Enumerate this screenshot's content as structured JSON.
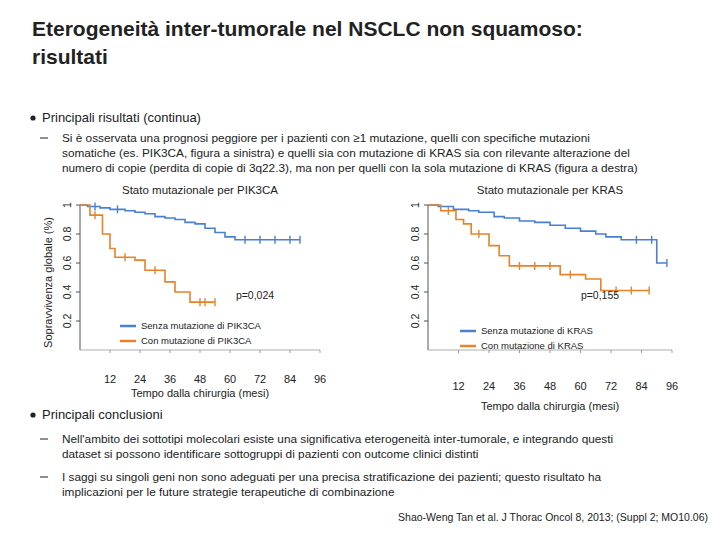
{
  "slide": {
    "title": [
      "Eterogeneità inter-tumorale nel NSCLC non squamoso:",
      "risultati"
    ],
    "results": {
      "heading": "Principali risultati (continua)",
      "items": [
        [
          "Si è osservata una prognosi peggiore per i pazienti con ≥1 mutazione, quelli con specifiche mutazioni",
          "somatiche (es. PIK3CA, figura a sinistra) e quelli sia con mutazione di KRAS sia con rilevante alterazione del",
          "numero di copie (perdita di copie di 3q22.3), ma non per quelli con la sola mutazione di KRAS (figura a destra)"
        ]
      ]
    },
    "conclusions": {
      "heading": "Principali conclusioni",
      "items": [
        [
          "Nell'ambito dei sottotipi molecolari esiste una significativa eterogeneità inter-tumorale, e integrando questi",
          "dataset si possono identificare sottogruppi di pazienti con outcome clinici distinti"
        ],
        [
          "I saggi su singoli geni non sono adeguati per una precisa stratificazione dei pazienti; questo risultato ha",
          "implicazioni per le future strategie terapeutiche di combinazione"
        ]
      ]
    },
    "citation": "Shao-Weng Tan et al. J Thorac Oncol 8, 2013; (Suppl 2; MO10.06)"
  },
  "chart_data": [
    {
      "type": "line",
      "title": "Stato mutazionale per PIK3CA",
      "x_label": "Tempo dalla chirurgia (mesi)",
      "y_label": "Sopravvivenza globale (%)",
      "xlim": [
        0,
        96
      ],
      "xticks": [
        12,
        24,
        36,
        48,
        60,
        72,
        84,
        96
      ],
      "ylim": [
        0,
        1
      ],
      "yticks": [
        0.2,
        0.4,
        0.6,
        0.8,
        1
      ],
      "legend": "lower left",
      "line_style": "step",
      "annotations": [
        "p=0,024"
      ],
      "series": [
        {
          "name": "Senza mutazione di PIK3CA",
          "color": "#4a7fd4",
          "marker": "censor",
          "x": [
            0,
            3,
            6,
            8,
            12,
            15,
            18,
            22,
            26,
            30,
            34,
            38,
            42,
            46,
            50,
            54,
            58,
            62,
            66,
            72,
            78,
            84,
            88
          ],
          "values": [
            1,
            0.99,
            0.99,
            0.98,
            0.97,
            0.97,
            0.96,
            0.95,
            0.94,
            0.92,
            0.91,
            0.9,
            0.88,
            0.87,
            0.84,
            0.81,
            0.78,
            0.76,
            0.76,
            0.76,
            0.76,
            0.76,
            0.76
          ]
        },
        {
          "name": "Con mutazione di PIK3CA",
          "color": "#e8822a",
          "marker": "censor",
          "x": [
            0,
            4,
            6,
            9,
            12,
            14,
            18,
            22,
            26,
            30,
            34,
            38,
            44,
            48,
            50,
            54
          ],
          "values": [
            1,
            0.93,
            0.93,
            0.8,
            0.7,
            0.64,
            0.64,
            0.62,
            0.55,
            0.55,
            0.47,
            0.4,
            0.33,
            0.33,
            0.33,
            0.33
          ]
        }
      ]
    },
    {
      "type": "line",
      "title": "Stato mutazionale per KRAS",
      "x_label": "Tempo dalla chirurgia (mesi)",
      "xlim": [
        0,
        96
      ],
      "xticks": [
        12,
        24,
        36,
        48,
        60,
        72,
        84,
        96
      ],
      "ylim": [
        0,
        1
      ],
      "yticks": [
        0.2,
        0.4,
        0.6,
        0.8,
        1
      ],
      "legend": "lower left",
      "line_style": "step",
      "annotations": [
        "p=0,155"
      ],
      "series": [
        {
          "name": "Senza mutazione di KRAS",
          "color": "#4a7fd4",
          "marker": "censor",
          "x": [
            0,
            4,
            10,
            16,
            20,
            26,
            30,
            36,
            42,
            48,
            54,
            60,
            66,
            70,
            76,
            82,
            88,
            90,
            94
          ],
          "values": [
            1,
            0.99,
            0.97,
            0.96,
            0.95,
            0.92,
            0.91,
            0.89,
            0.88,
            0.86,
            0.84,
            0.82,
            0.8,
            0.78,
            0.76,
            0.76,
            0.76,
            0.6,
            0.6
          ]
        },
        {
          "name": "Con mutazione di KRAS",
          "color": "#e8822a",
          "marker": "censor",
          "x": [
            0,
            5,
            8,
            11,
            14,
            17,
            20,
            24,
            28,
            32,
            36,
            42,
            48,
            52,
            56,
            62,
            68,
            74,
            80,
            87
          ],
          "values": [
            1,
            0.96,
            0.96,
            0.9,
            0.87,
            0.8,
            0.8,
            0.72,
            0.65,
            0.58,
            0.58,
            0.58,
            0.58,
            0.52,
            0.52,
            0.49,
            0.41,
            0.41,
            0.41,
            0.41
          ]
        }
      ]
    }
  ]
}
